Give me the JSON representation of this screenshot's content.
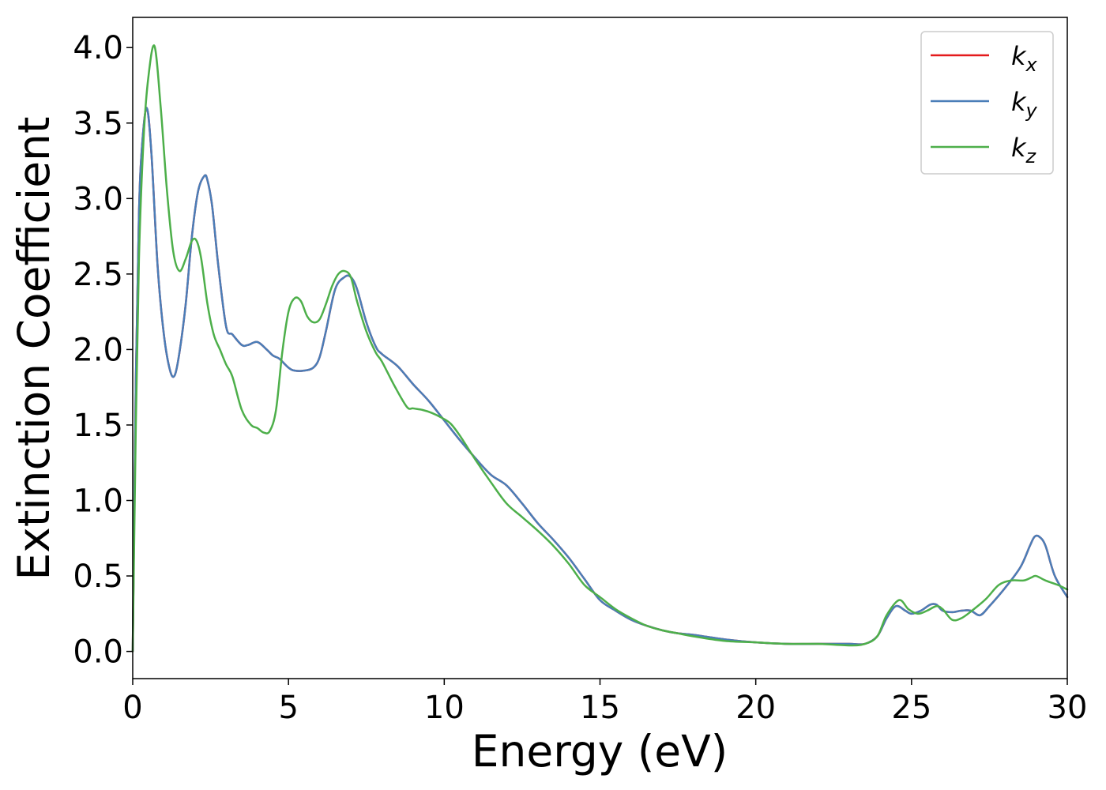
{
  "chart_data": {
    "type": "line",
    "xlabel": "Energy (eV)",
    "ylabel": "Extinction Coefficient",
    "xlim": [
      0,
      30
    ],
    "ylim": [
      -0.18,
      4.2
    ],
    "xticks": [
      0,
      5,
      10,
      15,
      20,
      25,
      30
    ],
    "xtick_labels": [
      "0",
      "5",
      "10",
      "15",
      "20",
      "25",
      "30"
    ],
    "yticks": [
      0.0,
      0.5,
      1.0,
      1.5,
      2.0,
      2.5,
      3.0,
      3.5,
      4.0
    ],
    "ytick_labels": [
      "0.0",
      "0.5",
      "1.0",
      "1.5",
      "2.0",
      "2.5",
      "3.0",
      "3.5",
      "4.0"
    ],
    "grid": false,
    "legend_position": "top-right",
    "series": [
      {
        "name": "k",
        "subscript": "x",
        "color": "#e41a1c",
        "x": [
          0.0,
          0.1,
          0.2,
          0.3,
          0.45,
          0.6,
          0.8,
          1.0,
          1.2,
          1.35,
          1.5,
          1.7,
          1.9,
          2.1,
          2.3,
          2.4,
          2.55,
          2.75,
          3.0,
          3.2,
          3.5,
          3.7,
          4.0,
          4.3,
          4.5,
          4.7,
          5.0,
          5.2,
          5.5,
          5.8,
          6.0,
          6.2,
          6.5,
          6.8,
          7.0,
          7.2,
          7.5,
          7.8,
          8.0,
          8.5,
          9.0,
          9.5,
          10.0,
          10.5,
          11.0,
          11.5,
          12.0,
          12.5,
          13.0,
          13.5,
          14.0,
          14.5,
          15.0,
          15.5,
          16.0,
          16.5,
          17.0,
          17.5,
          18.0,
          19.0,
          20.0,
          21.0,
          22.0,
          23.0,
          23.5,
          23.9,
          24.2,
          24.5,
          24.8,
          25.0,
          25.3,
          25.6,
          25.8,
          26.0,
          26.3,
          26.6,
          26.9,
          27.2,
          27.5,
          28.0,
          28.5,
          28.8,
          28.95,
          29.1,
          29.3,
          29.6,
          30.0
        ],
        "y": [
          0.0,
          1.8,
          2.9,
          3.35,
          3.6,
          3.3,
          2.55,
          2.1,
          1.86,
          1.83,
          1.98,
          2.3,
          2.75,
          3.05,
          3.15,
          3.12,
          2.95,
          2.55,
          2.15,
          2.1,
          2.03,
          2.03,
          2.05,
          2.0,
          1.96,
          1.94,
          1.88,
          1.86,
          1.86,
          1.88,
          1.95,
          2.12,
          2.4,
          2.48,
          2.48,
          2.4,
          2.18,
          2.02,
          1.97,
          1.89,
          1.77,
          1.66,
          1.53,
          1.4,
          1.28,
          1.17,
          1.1,
          0.98,
          0.85,
          0.74,
          0.62,
          0.48,
          0.34,
          0.27,
          0.21,
          0.17,
          0.14,
          0.12,
          0.11,
          0.08,
          0.06,
          0.05,
          0.05,
          0.05,
          0.05,
          0.1,
          0.22,
          0.3,
          0.27,
          0.25,
          0.27,
          0.31,
          0.31,
          0.27,
          0.26,
          0.27,
          0.27,
          0.24,
          0.3,
          0.42,
          0.56,
          0.7,
          0.76,
          0.76,
          0.7,
          0.5,
          0.36
        ]
      },
      {
        "name": "k",
        "subscript": "y",
        "color": "#4a7eb8",
        "x": [
          0.0,
          0.1,
          0.2,
          0.3,
          0.45,
          0.6,
          0.8,
          1.0,
          1.2,
          1.35,
          1.5,
          1.7,
          1.9,
          2.1,
          2.3,
          2.4,
          2.55,
          2.75,
          3.0,
          3.2,
          3.5,
          3.7,
          4.0,
          4.3,
          4.5,
          4.7,
          5.0,
          5.2,
          5.5,
          5.8,
          6.0,
          6.2,
          6.5,
          6.8,
          7.0,
          7.2,
          7.5,
          7.8,
          8.0,
          8.5,
          9.0,
          9.5,
          10.0,
          10.5,
          11.0,
          11.5,
          12.0,
          12.5,
          13.0,
          13.5,
          14.0,
          14.5,
          15.0,
          15.5,
          16.0,
          16.5,
          17.0,
          17.5,
          18.0,
          19.0,
          20.0,
          21.0,
          22.0,
          23.0,
          23.5,
          23.9,
          24.2,
          24.5,
          24.8,
          25.0,
          25.3,
          25.6,
          25.8,
          26.0,
          26.3,
          26.6,
          26.9,
          27.2,
          27.5,
          28.0,
          28.5,
          28.8,
          28.95,
          29.1,
          29.3,
          29.6,
          30.0
        ],
        "y": [
          0.0,
          1.8,
          2.9,
          3.35,
          3.6,
          3.3,
          2.55,
          2.1,
          1.86,
          1.83,
          1.98,
          2.3,
          2.75,
          3.05,
          3.15,
          3.12,
          2.95,
          2.55,
          2.15,
          2.1,
          2.03,
          2.03,
          2.05,
          2.0,
          1.96,
          1.94,
          1.88,
          1.86,
          1.86,
          1.88,
          1.95,
          2.12,
          2.4,
          2.48,
          2.48,
          2.4,
          2.18,
          2.02,
          1.97,
          1.89,
          1.77,
          1.66,
          1.53,
          1.4,
          1.28,
          1.17,
          1.1,
          0.98,
          0.85,
          0.74,
          0.62,
          0.48,
          0.34,
          0.27,
          0.21,
          0.17,
          0.14,
          0.12,
          0.11,
          0.08,
          0.06,
          0.05,
          0.05,
          0.05,
          0.05,
          0.1,
          0.22,
          0.3,
          0.27,
          0.25,
          0.27,
          0.31,
          0.31,
          0.27,
          0.26,
          0.27,
          0.27,
          0.24,
          0.3,
          0.42,
          0.56,
          0.7,
          0.76,
          0.76,
          0.7,
          0.5,
          0.36
        ]
      },
      {
        "name": "k",
        "subscript": "z",
        "color": "#4daf4a",
        "x": [
          0.0,
          0.1,
          0.2,
          0.35,
          0.5,
          0.7,
          0.9,
          1.1,
          1.3,
          1.5,
          1.7,
          1.9,
          2.05,
          2.2,
          2.4,
          2.6,
          2.8,
          3.0,
          3.2,
          3.5,
          3.8,
          4.0,
          4.2,
          4.4,
          4.6,
          4.8,
          5.0,
          5.2,
          5.4,
          5.6,
          5.8,
          6.0,
          6.2,
          6.4,
          6.6,
          6.8,
          7.0,
          7.2,
          7.5,
          7.8,
          8.0,
          8.4,
          8.8,
          9.0,
          9.3,
          9.6,
          9.9,
          10.2,
          10.5,
          11.0,
          11.5,
          12.0,
          12.5,
          13.0,
          13.5,
          14.0,
          14.5,
          15.0,
          15.5,
          16.0,
          16.5,
          17.0,
          17.5,
          18.0,
          19.0,
          20.0,
          21.0,
          22.0,
          23.0,
          23.5,
          23.9,
          24.2,
          24.6,
          24.9,
          25.2,
          25.5,
          25.8,
          26.0,
          26.3,
          26.6,
          27.0,
          27.4,
          27.8,
          28.2,
          28.6,
          28.85,
          29.0,
          29.3,
          29.7,
          30.0
        ],
        "y": [
          0.0,
          1.5,
          2.6,
          3.4,
          3.8,
          4.01,
          3.6,
          3.05,
          2.65,
          2.52,
          2.6,
          2.72,
          2.72,
          2.6,
          2.3,
          2.1,
          2.0,
          1.9,
          1.82,
          1.6,
          1.5,
          1.48,
          1.45,
          1.46,
          1.6,
          1.98,
          2.25,
          2.34,
          2.32,
          2.22,
          2.18,
          2.2,
          2.3,
          2.42,
          2.5,
          2.52,
          2.48,
          2.32,
          2.12,
          1.98,
          1.92,
          1.76,
          1.62,
          1.61,
          1.6,
          1.58,
          1.55,
          1.51,
          1.43,
          1.27,
          1.12,
          0.98,
          0.89,
          0.8,
          0.7,
          0.58,
          0.44,
          0.36,
          0.28,
          0.22,
          0.17,
          0.14,
          0.12,
          0.1,
          0.07,
          0.06,
          0.05,
          0.05,
          0.04,
          0.05,
          0.1,
          0.24,
          0.34,
          0.28,
          0.25,
          0.27,
          0.3,
          0.28,
          0.21,
          0.22,
          0.28,
          0.35,
          0.44,
          0.47,
          0.47,
          0.49,
          0.5,
          0.47,
          0.44,
          0.41
        ]
      }
    ]
  }
}
